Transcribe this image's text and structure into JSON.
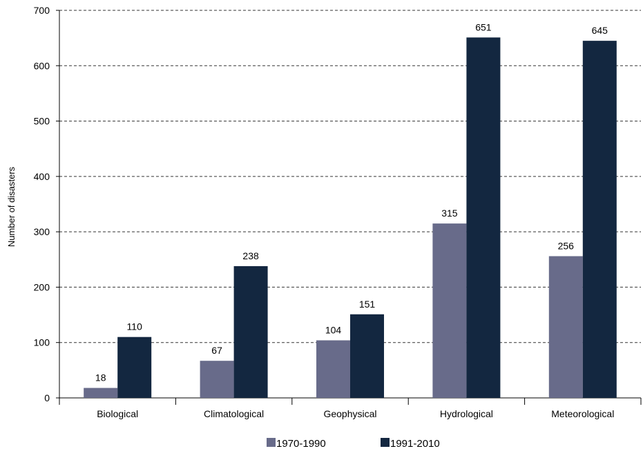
{
  "chart_data": {
    "type": "bar",
    "title": "",
    "xlabel": "",
    "ylabel": "Number of disasters",
    "ylim": [
      0,
      700
    ],
    "yticks": [
      0,
      100,
      200,
      300,
      400,
      500,
      600,
      700
    ],
    "grid": "horizontal dashed",
    "legend_position": "bottom-center",
    "categories": [
      "Biological",
      "Climatological",
      "Geophysical",
      "Hydrological",
      "Meteorological"
    ],
    "series": [
      {
        "name": "1970-1990",
        "values": [
          18,
          67,
          104,
          315,
          256
        ],
        "color": "#686b8a"
      },
      {
        "name": "1991-2010",
        "values": [
          110,
          238,
          151,
          651,
          645
        ],
        "color": "#132740"
      }
    ]
  }
}
